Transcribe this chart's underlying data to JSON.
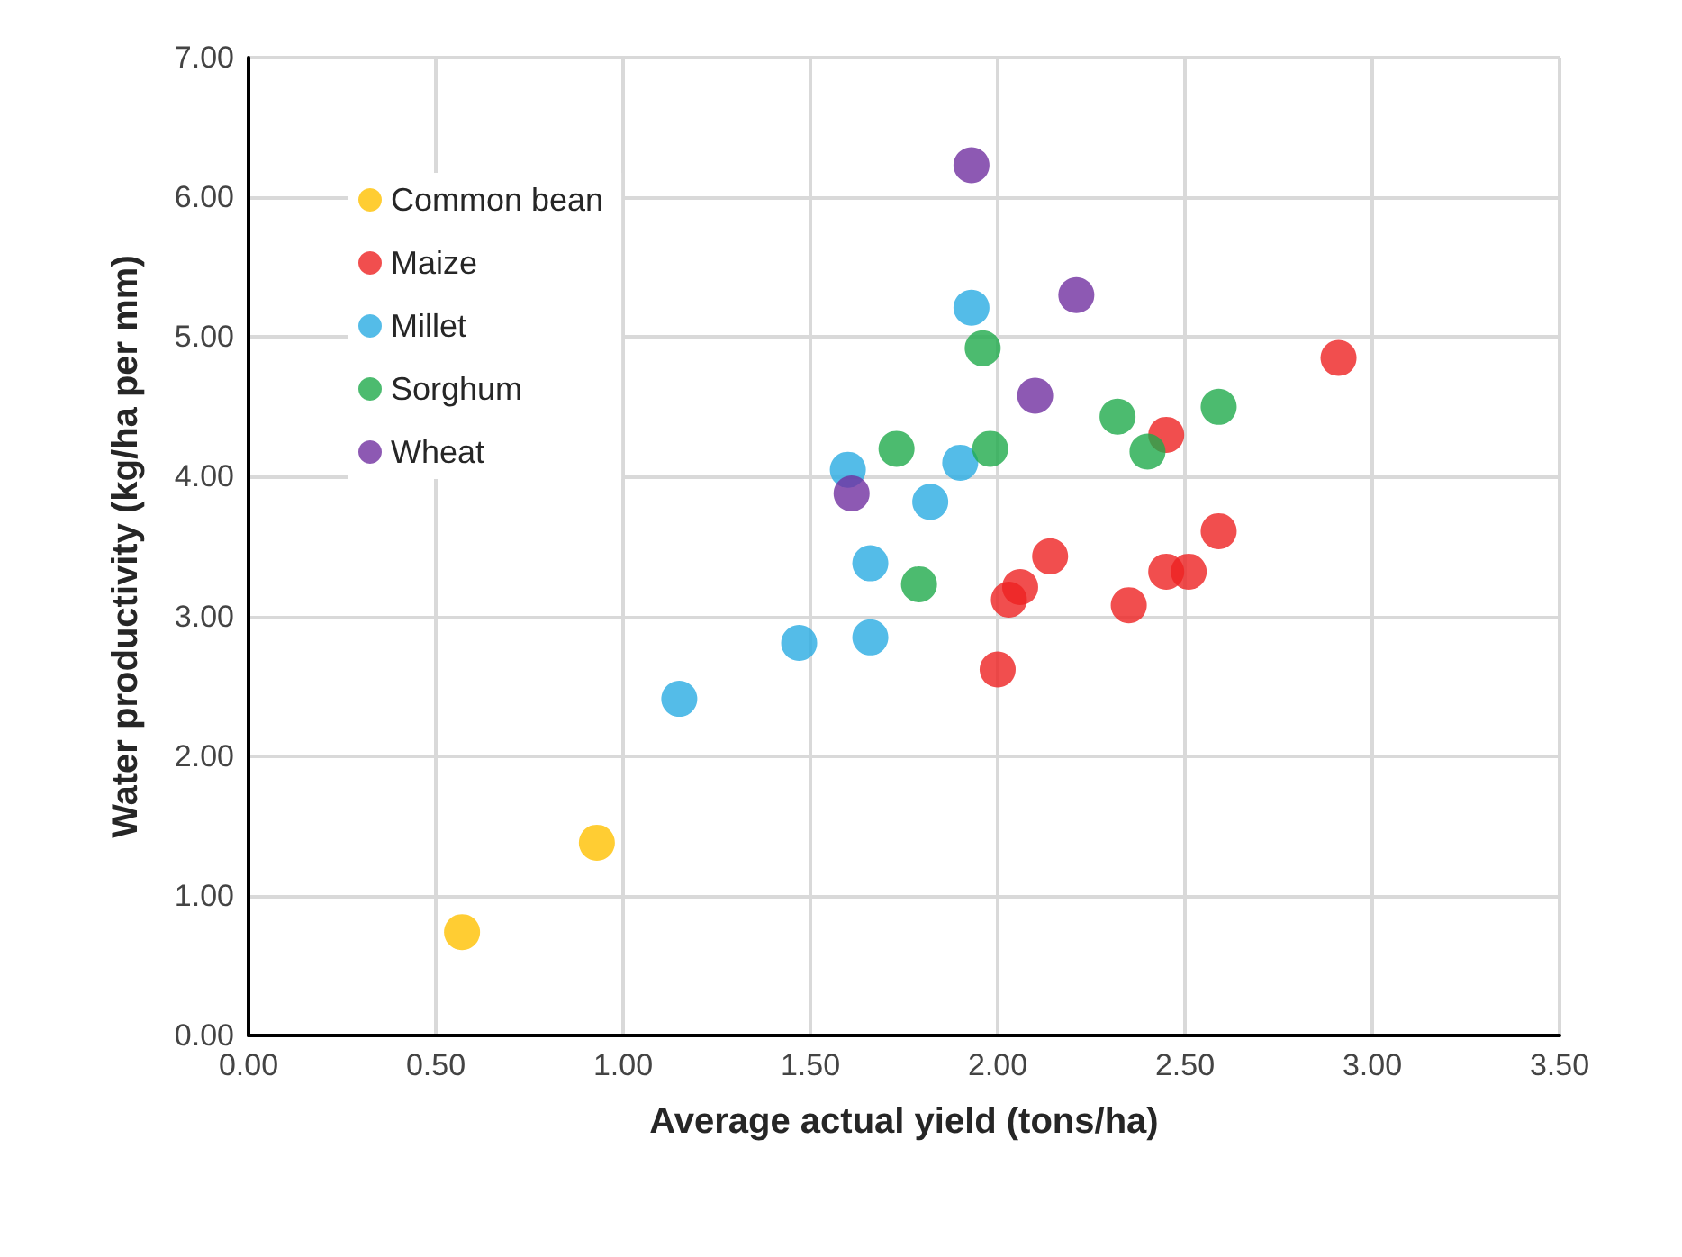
{
  "chart_data": {
    "type": "scatter",
    "xlabel": "Average actual yield (tons/ha)",
    "ylabel": "Water productivity (kg/ha per mm)",
    "xlim": [
      0,
      3.5
    ],
    "ylim": [
      0,
      7
    ],
    "xticks": [
      {
        "value": 0,
        "label": "0.00"
      },
      {
        "value": 0.5,
        "label": "0.50"
      },
      {
        "value": 1,
        "label": "1.00"
      },
      {
        "value": 1.5,
        "label": "1.50"
      },
      {
        "value": 2,
        "label": "2.00"
      },
      {
        "value": 2.5,
        "label": "2.50"
      },
      {
        "value": 3,
        "label": "3.00"
      },
      {
        "value": 3.5,
        "label": "3.50"
      }
    ],
    "yticks": [
      {
        "value": 0,
        "label": "0.00"
      },
      {
        "value": 1,
        "label": "1.00"
      },
      {
        "value": 2,
        "label": "2.00"
      },
      {
        "value": 3,
        "label": "3.00"
      },
      {
        "value": 4,
        "label": "4.00"
      },
      {
        "value": 5,
        "label": "5.00"
      },
      {
        "value": 6,
        "label": "6.00"
      },
      {
        "value": 7,
        "label": "7.00"
      }
    ],
    "grid": true,
    "legend": "top left",
    "marker": "circle",
    "series": [
      {
        "name": "Common bean",
        "color": "#ffc000",
        "x": [
          0.57,
          0.93
        ],
        "values": [
          0.74,
          1.38
        ]
      },
      {
        "name": "Maize",
        "color": "#ee2222",
        "x": [
          2.91,
          2.45,
          2.59,
          2.14,
          2.06,
          2.03,
          2.45,
          2.51,
          2.35,
          2.0
        ],
        "values": [
          4.85,
          4.3,
          3.61,
          3.43,
          3.21,
          3.12,
          3.32,
          3.32,
          3.08,
          2.62
        ]
      },
      {
        "name": "Millet",
        "color": "#29abe2",
        "x": [
          1.93,
          1.6,
          1.9,
          1.82,
          1.66,
          1.66,
          1.47,
          1.15
        ],
        "values": [
          5.21,
          4.05,
          4.1,
          3.82,
          3.38,
          2.85,
          2.81,
          2.41
        ]
      },
      {
        "name": "Sorghum",
        "color": "#1faa4b",
        "x": [
          1.96,
          1.73,
          1.98,
          2.32,
          2.4,
          2.59,
          1.79
        ],
        "values": [
          4.92,
          4.2,
          4.2,
          4.43,
          4.18,
          4.5,
          3.23
        ]
      },
      {
        "name": "Wheat",
        "color": "#7030a0",
        "x": [
          1.93,
          2.21,
          2.1,
          1.61
        ],
        "values": [
          6.23,
          5.3,
          4.58,
          3.88
        ]
      }
    ]
  }
}
